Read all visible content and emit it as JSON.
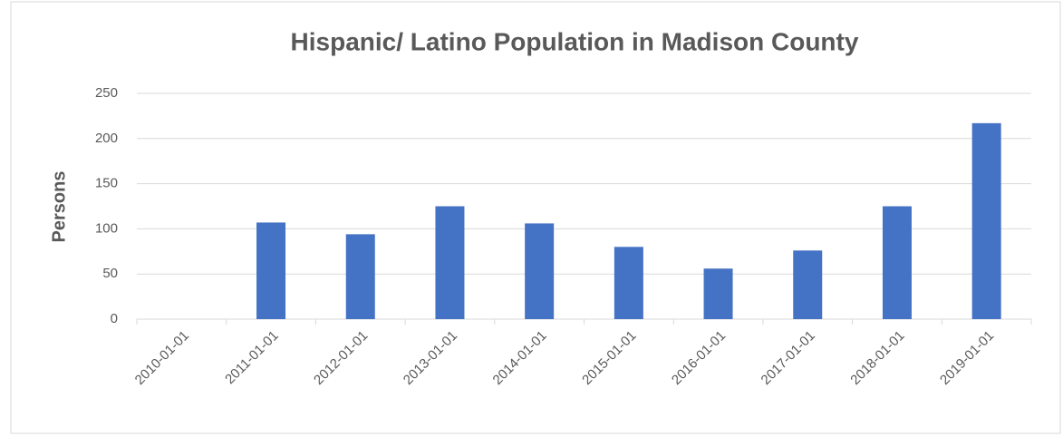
{
  "chart_data": {
    "type": "bar",
    "title": "Hispanic/ Latino Population in Madison County",
    "y_label": "Persons",
    "categories": [
      "2010-01-01",
      "2011-01-01",
      "2012-01-01",
      "2013-01-01",
      "2014-01-01",
      "2015-01-01",
      "2016-01-01",
      "2017-01-01",
      "2018-01-01",
      "2019-01-01"
    ],
    "values": [
      0,
      107,
      94,
      125,
      106,
      80,
      56,
      76,
      125,
      217
    ],
    "color": "#4472c4",
    "ylim": [
      0,
      250
    ],
    "yticks": [
      0,
      50,
      100,
      150,
      200,
      250
    ],
    "grid": true
  }
}
